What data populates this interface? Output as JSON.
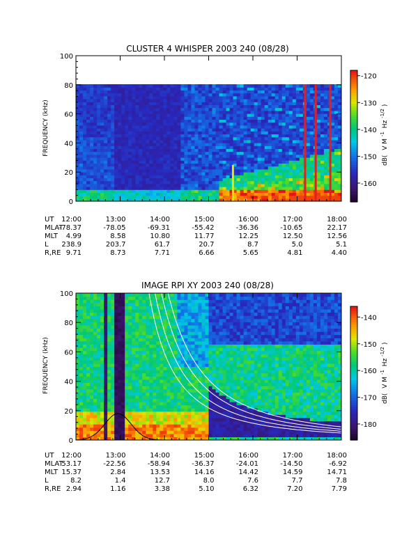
{
  "chart_data": [
    {
      "type": "heatmap",
      "title": "CLUSTER 4 WHISPER 2003 240 (08/28)",
      "ylabel": "FREQUENCY (kHz)",
      "ylim": [
        0,
        100
      ],
      "yticks": [
        "0",
        "20",
        "40",
        "60",
        "80",
        "100"
      ],
      "data_top_khz": 80,
      "xlim_hours": [
        12,
        18
      ],
      "colorbar": {
        "label": "dB( V M⁻¹ Hz⁻¹ᐟ²)",
        "label_main": "dB(",
        "label_v": "V M",
        "label_sup1": "-1",
        "label_hz": "Hz",
        "label_sup2": "-1/2",
        "label_close": ")",
        "range": [
          -167,
          -118
        ],
        "ticks": [
          "-120",
          "-130",
          "-140",
          "-150",
          "-160"
        ],
        "tick_values": [
          -120,
          -130,
          -140,
          -150,
          -160
        ]
      },
      "ephemeris": {
        "rows": [
          {
            "label": "UT",
            "values": [
              "12:00",
              "13:00",
              "14:00",
              "15:00",
              "16:00",
              "17:00",
              "18:00"
            ]
          },
          {
            "label": "MLAT",
            "values": [
              "-78.37",
              "-78.05",
              "-69.31",
              "-55.42",
              "-36.36",
              "-10.65",
              "22.17"
            ]
          },
          {
            "label": "MLT",
            "values": [
              "4.99",
              "8.58",
              "10.80",
              "11.77",
              "12.25",
              "12.50",
              "12.56"
            ]
          },
          {
            "label": "L",
            "values": [
              "238.9",
              "203.7",
              "61.7",
              "20.7",
              "8.7",
              "5.0",
              "5.1"
            ]
          },
          {
            "label": "R,RE",
            "values": [
              "9.71",
              "8.73",
              "7.71",
              "6.66",
              "5.65",
              "4.81",
              "4.40"
            ]
          }
        ]
      },
      "features": [
        {
          "kind": "line",
          "hour": 15.55,
          "f_low": 0,
          "f_high": 25
        },
        {
          "kind": "line",
          "hour": 17.18,
          "f_low": 0,
          "f_high": 80
        },
        {
          "kind": "line",
          "hour": 17.42,
          "f_low": 0,
          "f_high": 80
        },
        {
          "kind": "line",
          "hour": 17.75,
          "f_low": 0,
          "f_high": 80
        }
      ]
    },
    {
      "type": "heatmap",
      "title": "IMAGE RPI XY 2003 240 (08/28)",
      "ylabel": "FREQUENCY (kHz)",
      "ylim": [
        0,
        100
      ],
      "yticks": [
        "0",
        "20",
        "40",
        "60",
        "80",
        "100"
      ],
      "xlim_hours": [
        12,
        18
      ],
      "colorbar": {
        "label_main": "dB(",
        "label_v": "V M",
        "label_sup1": "-1",
        "label_hz": "Hz",
        "label_sup2": "-1/2",
        "label_close": ")",
        "range": [
          -186,
          -136
        ],
        "ticks": [
          "-140",
          "-150",
          "-160",
          "-170",
          "-180"
        ],
        "tick_values": [
          -140,
          -150,
          -160,
          -170,
          -180
        ]
      },
      "ephemeris": {
        "rows": [
          {
            "label": "UT",
            "values": [
              "12:00",
              "13:00",
              "14:00",
              "15:00",
              "16:00",
              "17:00",
              "18:00"
            ]
          },
          {
            "label": "MLAT",
            "values": [
              "53.17",
              "-22.56",
              "-58.94",
              "-36.37",
              "-24.01",
              "-14.50",
              "-6.92"
            ]
          },
          {
            "label": "MLT",
            "values": [
              "15.37",
              "2.84",
              "13.53",
              "14.16",
              "14.42",
              "14.59",
              "14.71"
            ]
          },
          {
            "label": "L",
            "values": [
              "8.2",
              "1.4",
              "12.7",
              "8.0",
              "7.6",
              "7.7",
              "7.8"
            ]
          },
          {
            "label": "R,RE",
            "values": [
              "2.94",
              "1.16",
              "3.38",
              "5.10",
              "6.32",
              "7.20",
              "7.79"
            ]
          }
        ]
      },
      "overlay_curves": {
        "white_scale_khz_hours": [
          120,
          150,
          185,
          225
        ],
        "black_peak_hour": 12.95,
        "black_peak_khz": 18
      }
    }
  ]
}
